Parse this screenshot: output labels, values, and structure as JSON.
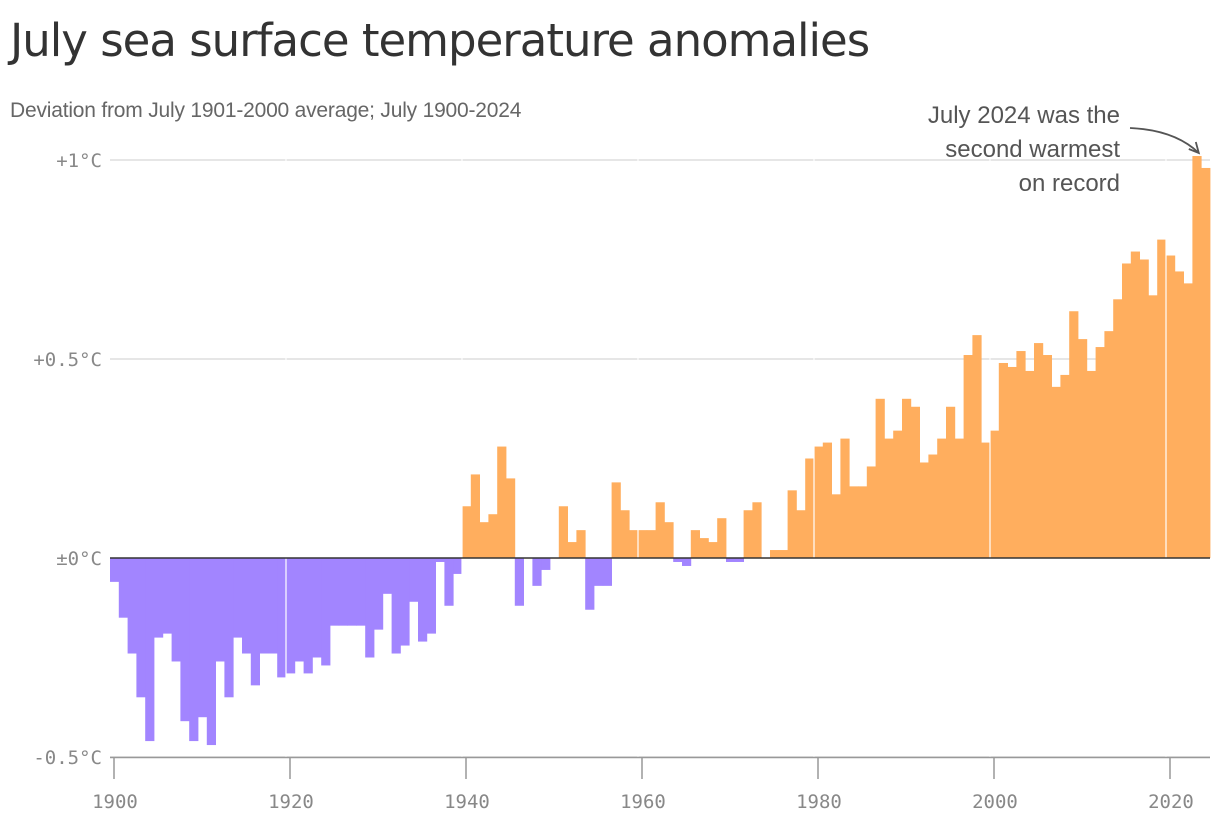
{
  "title": "July sea surface temperature anomalies",
  "subtitle": "Deviation from July 1901-2000 average; July 1900-2024",
  "colors": {
    "positive": "#ffae5e",
    "negative": "#a285ff",
    "grid": "#dddddd",
    "axis": "#999999",
    "text": "#333333"
  },
  "annotation": {
    "lines": [
      "July 2024 was the",
      "second warmest",
      "on record"
    ],
    "year": 2023
  },
  "chart_data": {
    "type": "bar",
    "ylim": [
      -0.5,
      1.0
    ],
    "xlim": [
      1899.5,
      2024.5
    ],
    "grid": true,
    "y_ticks": [
      {
        "value": 1.0,
        "label": "+1°C"
      },
      {
        "value": 0.5,
        "label": "+0.5°C"
      },
      {
        "value": 0.0,
        "label": "±0°C"
      },
      {
        "value": -0.5,
        "label": "-0.5°C"
      }
    ],
    "x_ticks": [
      1900,
      1920,
      1940,
      1960,
      1980,
      2000,
      2020
    ],
    "x": [
      1900,
      1901,
      1902,
      1903,
      1904,
      1905,
      1906,
      1907,
      1908,
      1909,
      1910,
      1911,
      1912,
      1913,
      1914,
      1915,
      1916,
      1917,
      1918,
      1919,
      1920,
      1921,
      1922,
      1923,
      1924,
      1925,
      1926,
      1927,
      1928,
      1929,
      1930,
      1931,
      1932,
      1933,
      1934,
      1935,
      1936,
      1937,
      1938,
      1939,
      1940,
      1941,
      1942,
      1943,
      1944,
      1945,
      1946,
      1947,
      1948,
      1949,
      1950,
      1951,
      1952,
      1953,
      1954,
      1955,
      1956,
      1957,
      1958,
      1959,
      1960,
      1961,
      1962,
      1963,
      1964,
      1965,
      1966,
      1967,
      1968,
      1969,
      1970,
      1971,
      1972,
      1973,
      1974,
      1975,
      1976,
      1977,
      1978,
      1979,
      1980,
      1981,
      1982,
      1983,
      1984,
      1985,
      1986,
      1987,
      1988,
      1989,
      1990,
      1991,
      1992,
      1993,
      1994,
      1995,
      1996,
      1997,
      1998,
      1999,
      2000,
      2001,
      2002,
      2003,
      2004,
      2005,
      2006,
      2007,
      2008,
      2009,
      2010,
      2011,
      2012,
      2013,
      2014,
      2015,
      2016,
      2017,
      2018,
      2019,
      2020,
      2021,
      2022,
      2023,
      2024
    ],
    "values": [
      -0.06,
      -0.15,
      -0.24,
      -0.35,
      -0.46,
      -0.2,
      -0.19,
      -0.26,
      -0.41,
      -0.46,
      -0.4,
      -0.47,
      -0.26,
      -0.35,
      -0.2,
      -0.24,
      -0.32,
      -0.24,
      -0.24,
      -0.3,
      -0.29,
      -0.26,
      -0.29,
      -0.25,
      -0.27,
      -0.17,
      -0.17,
      -0.17,
      -0.17,
      -0.25,
      -0.18,
      -0.09,
      -0.24,
      -0.22,
      -0.11,
      -0.21,
      -0.19,
      -0.01,
      -0.12,
      -0.04,
      0.13,
      0.21,
      0.09,
      0.11,
      0.28,
      0.2,
      -0.12,
      0.0,
      -0.07,
      -0.03,
      0.0,
      0.13,
      0.04,
      0.07,
      -0.13,
      -0.07,
      -0.07,
      0.19,
      0.12,
      0.07,
      0.07,
      0.07,
      0.14,
      0.09,
      -0.01,
      -0.02,
      0.07,
      0.05,
      0.04,
      0.1,
      -0.01,
      -0.01,
      0.12,
      0.14,
      0.0,
      0.02,
      0.02,
      0.17,
      0.12,
      0.25,
      0.28,
      0.29,
      0.16,
      0.3,
      0.18,
      0.18,
      0.23,
      0.4,
      0.3,
      0.32,
      0.4,
      0.38,
      0.24,
      0.26,
      0.3,
      0.38,
      0.3,
      0.51,
      0.56,
      0.29,
      0.32,
      0.49,
      0.48,
      0.52,
      0.47,
      0.54,
      0.51,
      0.43,
      0.46,
      0.62,
      0.55,
      0.47,
      0.53,
      0.57,
      0.65,
      0.74,
      0.77,
      0.75,
      0.66,
      0.8,
      0.76,
      0.72,
      0.69,
      1.01,
      0.98
    ]
  }
}
